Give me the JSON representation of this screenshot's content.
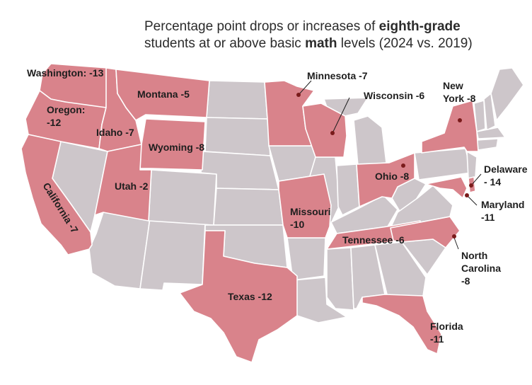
{
  "title": {
    "part1": "Percentage point drops or increases of ",
    "bold1": "eighth-grade",
    "part2": "students at or above basic ",
    "bold2": "math",
    "part3": " levels (2024 vs. 2019)"
  },
  "colors": {
    "highlight": "#d9838b",
    "other": "#cdc6ca",
    "border": "#ffffff",
    "dot": "#7a1b1b"
  },
  "highlighted_states": [
    "Washington",
    "Oregon",
    "California",
    "Idaho",
    "Montana",
    "Wyoming",
    "Utah",
    "Texas",
    "Missouri",
    "Minnesota",
    "Wisconsin",
    "Ohio",
    "Tennessee",
    "Florida",
    "North Carolina",
    "New York",
    "Maryland",
    "Delaware"
  ],
  "labels": {
    "washington": "Washington: -13",
    "oregon_1": "Oregon:",
    "oregon_2": "-12",
    "idaho": "Idaho -7",
    "montana": "Montana -5",
    "wyoming": "Wyoming -8",
    "utah": "Utah -2",
    "california": "California -7",
    "texas": "Texas -12",
    "missouri_1": "Missouri",
    "missouri_2": "-10",
    "minnesota": "Minnesota -7",
    "wisconsin": "Wisconsin -6",
    "ohio": "Ohio -8",
    "tennessee": "Tennessee -6",
    "new_york_1": "New",
    "new_york_2": "York -8",
    "delaware_1": "Delaware",
    "delaware_2": "- 14",
    "maryland_1": "Maryland",
    "maryland_2": "-11",
    "north_carolina_1": "North",
    "north_carolina_2": "Carolina",
    "north_carolina_3": "-8",
    "florida_1": "Florida",
    "florida_2": "-11"
  }
}
